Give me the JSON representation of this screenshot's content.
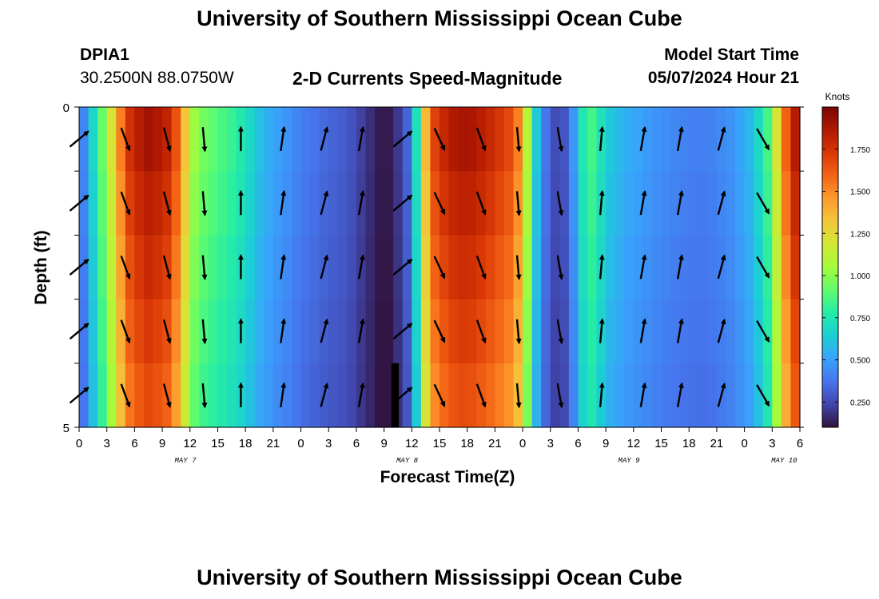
{
  "header": {
    "title": "University of Southern Mississippi Ocean Cube",
    "station_id": "DPIA1",
    "coordinates": "30.2500N  88.0750W",
    "subtitle": "2-D Currents Speed-Magnitude",
    "model_start_label": "Model Start Time",
    "model_start_value": "05/07/2024 Hour 21"
  },
  "footer": {
    "title": "University of Southern Mississippi Ocean Cube"
  },
  "chart_data": {
    "type": "heatmap",
    "title": "2-D Currents Speed-Magnitude",
    "xlabel": "Forecast Time(Z)",
    "ylabel": "Depth (ft)",
    "xlim": [
      0,
      78
    ],
    "ylim": [
      0,
      5
    ],
    "x_unit": "hours after 05/07 00Z",
    "y_tick_labels": [
      "0",
      "5"
    ],
    "x_ticks": [
      {
        "t": 0,
        "label": "0"
      },
      {
        "t": 3,
        "label": "3"
      },
      {
        "t": 6,
        "label": "6"
      },
      {
        "t": 9,
        "label": "9"
      },
      {
        "t": 12,
        "label": "12"
      },
      {
        "t": 15,
        "label": "15"
      },
      {
        "t": 18,
        "label": "18"
      },
      {
        "t": 21,
        "label": "21"
      },
      {
        "t": 24,
        "label": "0"
      },
      {
        "t": 27,
        "label": "3"
      },
      {
        "t": 30,
        "label": "6"
      },
      {
        "t": 33,
        "label": "9"
      },
      {
        "t": 36,
        "label": "12"
      },
      {
        "t": 39,
        "label": "15"
      },
      {
        "t": 42,
        "label": "18"
      },
      {
        "t": 45,
        "label": "21"
      },
      {
        "t": 48,
        "label": "0"
      },
      {
        "t": 51,
        "label": "3"
      },
      {
        "t": 54,
        "label": "6"
      },
      {
        "t": 57,
        "label": "9"
      },
      {
        "t": 60,
        "label": "12"
      },
      {
        "t": 63,
        "label": "15"
      },
      {
        "t": 66,
        "label": "18"
      },
      {
        "t": 69,
        "label": "21"
      },
      {
        "t": 72,
        "label": "0"
      },
      {
        "t": 75,
        "label": "3"
      },
      {
        "t": 78,
        "label": "6"
      }
    ],
    "date_labels": [
      {
        "t": 11.5,
        "label": "MAY 7"
      },
      {
        "t": 35.5,
        "label": "MAY 8"
      },
      {
        "t": 59.5,
        "label": "MAY 9"
      },
      {
        "t": 76.3,
        "label": "MAY 10"
      }
    ],
    "depth_levels": [
      0.5,
      1.5,
      2.5,
      3.5,
      4.5
    ],
    "speed_profile_knots": [
      {
        "t": 0,
        "v": 0.3
      },
      {
        "t": 1,
        "v": 0.55
      },
      {
        "t": 2,
        "v": 0.8
      },
      {
        "t": 3,
        "v": 1.05
      },
      {
        "t": 4,
        "v": 1.35
      },
      {
        "t": 5,
        "v": 1.7
      },
      {
        "t": 6,
        "v": 1.82
      },
      {
        "t": 7.5,
        "v": 1.9
      },
      {
        "t": 9,
        "v": 1.85
      },
      {
        "t": 10,
        "v": 1.78
      },
      {
        "t": 11,
        "v": 1.5
      },
      {
        "t": 11.7,
        "v": 1.25
      },
      {
        "t": 12.3,
        "v": 1.05
      },
      {
        "t": 13.5,
        "v": 0.95
      },
      {
        "t": 15,
        "v": 0.88
      },
      {
        "t": 17,
        "v": 0.8
      },
      {
        "t": 18,
        "v": 0.72
      },
      {
        "t": 19.5,
        "v": 0.6
      },
      {
        "t": 21,
        "v": 0.52
      },
      {
        "t": 23,
        "v": 0.45
      },
      {
        "t": 24,
        "v": 0.4
      },
      {
        "t": 25,
        "v": 0.38
      },
      {
        "t": 27,
        "v": 0.33
      },
      {
        "t": 29,
        "v": 0.3
      },
      {
        "t": 31,
        "v": 0.2
      },
      {
        "t": 33,
        "v": 0.1
      },
      {
        "t": 34,
        "v": 0.15
      },
      {
        "t": 35,
        "v": 0.25
      },
      {
        "t": 36,
        "v": 0.4
      },
      {
        "t": 36.7,
        "v": 0.85
      },
      {
        "t": 37.3,
        "v": 1.3
      },
      {
        "t": 38.5,
        "v": 1.7
      },
      {
        "t": 40,
        "v": 1.85
      },
      {
        "t": 42,
        "v": 1.9
      },
      {
        "t": 44,
        "v": 1.82
      },
      {
        "t": 47,
        "v": 1.65
      },
      {
        "t": 48,
        "v": 1.4
      },
      {
        "t": 49,
        "v": 0.8
      },
      {
        "t": 50,
        "v": 0.45
      },
      {
        "t": 51,
        "v": 0.3
      },
      {
        "t": 52,
        "v": 0.22
      },
      {
        "t": 53,
        "v": 0.35
      },
      {
        "t": 54,
        "v": 0.6
      },
      {
        "t": 55,
        "v": 0.9
      },
      {
        "t": 56,
        "v": 0.8
      },
      {
        "t": 57,
        "v": 0.65
      },
      {
        "t": 59,
        "v": 0.55
      },
      {
        "t": 61,
        "v": 0.5
      },
      {
        "t": 63,
        "v": 0.45
      },
      {
        "t": 65,
        "v": 0.42
      },
      {
        "t": 67,
        "v": 0.4
      },
      {
        "t": 69,
        "v": 0.42
      },
      {
        "t": 71,
        "v": 0.48
      },
      {
        "t": 73,
        "v": 0.6
      },
      {
        "t": 74.5,
        "v": 0.85
      },
      {
        "t": 75.5,
        "v": 1.2
      },
      {
        "t": 76.5,
        "v": 1.6
      },
      {
        "t": 77.5,
        "v": 1.85
      },
      {
        "t": 78,
        "v": 1.9
      }
    ],
    "bottom_level_anomaly": {
      "t_start": 33.8,
      "t_end": 34.6,
      "depth_start": 4,
      "depth_end": 5,
      "speed_knots": 0.0
    },
    "vector_direction_deg_by_time": [
      {
        "t": 0,
        "dir": 50
      },
      {
        "t": 5,
        "dir": 160
      },
      {
        "t": 9.5,
        "dir": 165
      },
      {
        "t": 13.5,
        "dir": 175
      },
      {
        "t": 17.5,
        "dir": 0
      },
      {
        "t": 22,
        "dir": 8
      },
      {
        "t": 26.5,
        "dir": 15
      },
      {
        "t": 30.5,
        "dir": 10
      },
      {
        "t": 35,
        "dir": 50
      },
      {
        "t": 39,
        "dir": 155
      },
      {
        "t": 43.5,
        "dir": 160
      },
      {
        "t": 47.5,
        "dir": 175
      },
      {
        "t": 52,
        "dir": 170
      },
      {
        "t": 56.5,
        "dir": 5
      },
      {
        "t": 61,
        "dir": 10
      },
      {
        "t": 65,
        "dir": 10
      },
      {
        "t": 69.5,
        "dir": 15
      },
      {
        "t": 74,
        "dir": 150
      }
    ],
    "colorbar": {
      "title": "Knots",
      "range": [
        0.1,
        2.0
      ],
      "tick_values": [
        0.25,
        0.5,
        0.75,
        1.0,
        1.25,
        1.5,
        1.75
      ],
      "tick_labels": [
        "0.250",
        "0.500",
        "0.750",
        "1.000",
        "1.250",
        "1.500",
        "1.750"
      ]
    },
    "colormap": [
      "#30123b",
      "#4145ab",
      "#4675ed",
      "#39a2fc",
      "#1bcfd4",
      "#24eca6",
      "#61fc6c",
      "#a4fc3b",
      "#d1e834",
      "#f3c63a",
      "#fe9b2d",
      "#f36315",
      "#d93806",
      "#b11901",
      "#7a0403"
    ]
  }
}
